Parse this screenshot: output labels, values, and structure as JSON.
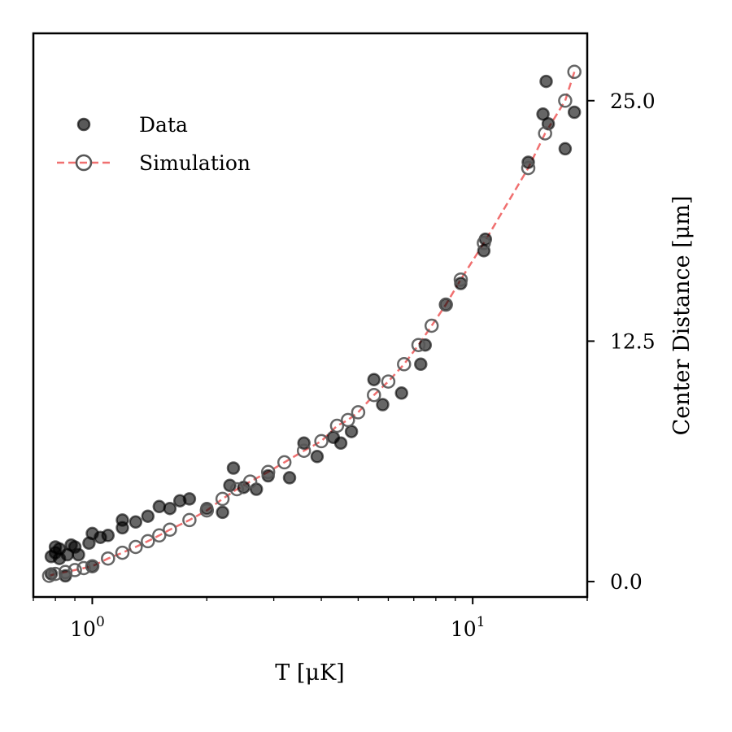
{
  "chart_data": {
    "type": "scatter",
    "xlabel": "T [μK]",
    "ylabel": "Center Distance [μm]",
    "xscale": "log",
    "xlim": [
      0.7,
      20
    ],
    "ylim": [
      -0.8,
      28.5
    ],
    "x_major_ticks": [
      1,
      10
    ],
    "x_major_tick_labels": [
      {
        "base": "10",
        "exp": "0"
      },
      {
        "base": "10",
        "exp": "1"
      }
    ],
    "y_ticks": [
      0.0,
      12.5,
      25.0
    ],
    "y_tick_labels": [
      "0.0",
      "12.5",
      "25.0"
    ],
    "y_axis_side": "right",
    "legend_position": "upper-left",
    "colors": {
      "data": "#000000",
      "simulation_marker": "#555555",
      "simulation_line": "#f07070"
    },
    "series": [
      {
        "name": "Data",
        "style": "filled-marker",
        "points": [
          [
            0.78,
            0.4
          ],
          [
            0.78,
            1.3
          ],
          [
            0.8,
            1.8
          ],
          [
            0.8,
            1.5
          ],
          [
            0.82,
            1.2
          ],
          [
            0.82,
            1.7
          ],
          [
            0.85,
            0.3
          ],
          [
            0.86,
            1.4
          ],
          [
            0.88,
            1.9
          ],
          [
            0.9,
            1.8
          ],
          [
            0.92,
            1.4
          ],
          [
            0.98,
            2.0
          ],
          [
            1.0,
            0.8
          ],
          [
            1.0,
            2.5
          ],
          [
            1.05,
            2.3
          ],
          [
            1.1,
            2.4
          ],
          [
            1.2,
            3.2
          ],
          [
            1.2,
            2.8
          ],
          [
            1.3,
            3.1
          ],
          [
            1.4,
            3.4
          ],
          [
            1.5,
            3.9
          ],
          [
            1.6,
            3.8
          ],
          [
            1.7,
            4.2
          ],
          [
            1.8,
            4.3
          ],
          [
            2.0,
            3.8
          ],
          [
            2.2,
            3.6
          ],
          [
            2.3,
            5.0
          ],
          [
            2.35,
            5.9
          ],
          [
            2.5,
            4.9
          ],
          [
            2.7,
            4.8
          ],
          [
            2.9,
            5.5
          ],
          [
            3.3,
            5.4
          ],
          [
            3.6,
            7.2
          ],
          [
            3.9,
            6.5
          ],
          [
            4.3,
            7.5
          ],
          [
            4.5,
            7.2
          ],
          [
            4.8,
            7.8
          ],
          [
            5.5,
            10.5
          ],
          [
            5.8,
            9.2
          ],
          [
            6.5,
            9.8
          ],
          [
            7.3,
            11.3
          ],
          [
            7.5,
            12.3
          ],
          [
            8.5,
            14.4
          ],
          [
            9.3,
            15.5
          ],
          [
            10.7,
            17.2
          ],
          [
            10.8,
            17.8
          ],
          [
            14.0,
            21.8
          ],
          [
            15.3,
            24.3
          ],
          [
            15.6,
            26.0
          ],
          [
            15.8,
            23.8
          ],
          [
            17.5,
            22.5
          ],
          [
            18.5,
            24.4
          ]
        ]
      },
      {
        "name": "Simulation",
        "style": "open-marker-dashed-line",
        "points": [
          [
            0.77,
            0.3
          ],
          [
            0.8,
            0.4
          ],
          [
            0.85,
            0.5
          ],
          [
            0.9,
            0.6
          ],
          [
            0.95,
            0.7
          ],
          [
            1.0,
            0.8
          ],
          [
            1.1,
            1.2
          ],
          [
            1.2,
            1.5
          ],
          [
            1.3,
            1.8
          ],
          [
            1.4,
            2.1
          ],
          [
            1.5,
            2.4
          ],
          [
            1.6,
            2.7
          ],
          [
            1.8,
            3.2
          ],
          [
            2.0,
            3.7
          ],
          [
            2.2,
            4.3
          ],
          [
            2.4,
            4.8
          ],
          [
            2.6,
            5.2
          ],
          [
            2.9,
            5.7
          ],
          [
            3.2,
            6.2
          ],
          [
            3.6,
            6.8
          ],
          [
            4.0,
            7.3
          ],
          [
            4.4,
            8.1
          ],
          [
            4.7,
            8.4
          ],
          [
            5.0,
            8.8
          ],
          [
            5.5,
            9.7
          ],
          [
            6.0,
            10.4
          ],
          [
            6.6,
            11.3
          ],
          [
            7.2,
            12.3
          ],
          [
            7.8,
            13.3
          ],
          [
            8.5,
            14.4
          ],
          [
            9.3,
            15.7
          ],
          [
            10.7,
            17.6
          ],
          [
            14.0,
            21.5
          ],
          [
            15.5,
            23.3
          ],
          [
            17.5,
            25.0
          ],
          [
            18.5,
            26.5
          ]
        ]
      }
    ]
  }
}
